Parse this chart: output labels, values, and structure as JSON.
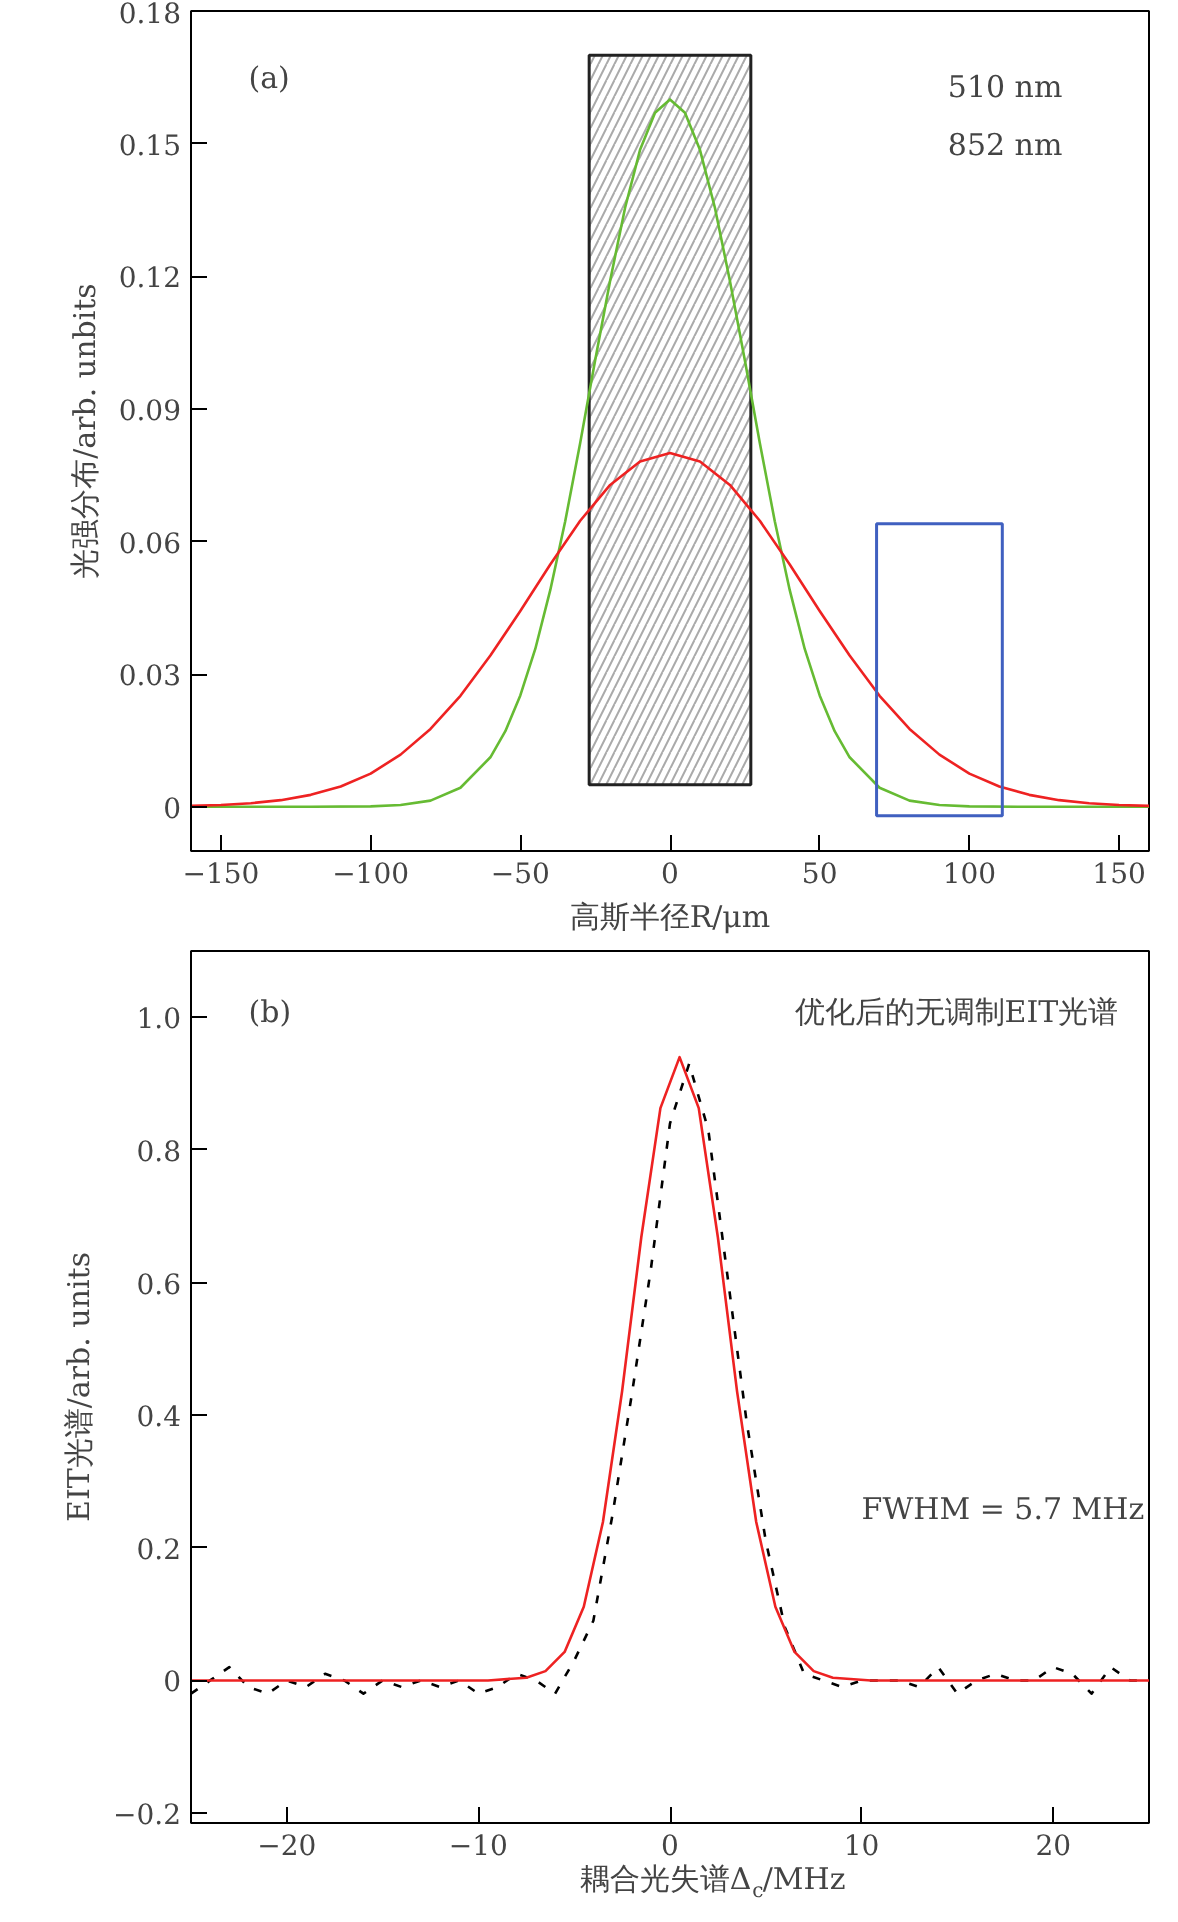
{
  "chart_data": [
    {
      "type": "line",
      "xlabel": "高斯半径R/μm",
      "ylabel": "光强分布/arb. unbits",
      "xlim": [
        -160,
        160
      ],
      "ylim": [
        -0.01,
        0.18
      ],
      "xticks": [
        {
          "value": -150,
          "label": "−150"
        },
        {
          "value": -100,
          "label": "−100"
        },
        {
          "value": -50,
          "label": "−50"
        },
        0,
        50,
        100,
        150
      ],
      "yticks": [
        0,
        0.03,
        0.06,
        0.09,
        0.12,
        0.15,
        0.18
      ],
      "grid": false,
      "line_style": "solid",
      "marker": "none",
      "annotations": [
        "(a)",
        "510 nm",
        "852 nm"
      ],
      "series": [
        {
          "color": "#66bb33",
          "x": [
            -160,
            -120,
            -100,
            -90,
            -80,
            -70,
            -60,
            -55,
            -50,
            -45,
            -40,
            -35,
            -30,
            -25,
            -20,
            -15,
            -10,
            -5,
            0,
            5,
            10,
            15,
            20,
            25,
            30,
            35,
            40,
            45,
            50,
            55,
            60,
            70,
            80,
            90,
            100,
            120,
            160
          ],
          "values": [
            0,
            0,
            0.0001,
            0.0004,
            0.0014,
            0.0043,
            0.0112,
            0.0171,
            0.0252,
            0.0357,
            0.049,
            0.0646,
            0.0823,
            0.101,
            0.119,
            0.1355,
            0.1486,
            0.157,
            0.16,
            0.157,
            0.1486,
            0.1355,
            0.119,
            0.101,
            0.0823,
            0.0646,
            0.049,
            0.0357,
            0.0252,
            0.0171,
            0.0112,
            0.0043,
            0.0014,
            0.0004,
            0.0001,
            0,
            0
          ]
        },
        {
          "color": "#ee2222",
          "x": [
            -160,
            -150,
            -140,
            -130,
            -120,
            -110,
            -100,
            -90,
            -80,
            -70,
            -60,
            -50,
            -40,
            -30,
            -20,
            -10,
            0,
            10,
            20,
            30,
            40,
            50,
            60,
            70,
            80,
            90,
            100,
            110,
            120,
            130,
            140,
            150,
            160
          ],
          "values": [
            0.0002,
            0.0004,
            0.0008,
            0.0015,
            0.0027,
            0.0046,
            0.0075,
            0.0118,
            0.0176,
            0.0251,
            0.0342,
            0.0443,
            0.0548,
            0.0647,
            0.0728,
            0.0781,
            0.08,
            0.0781,
            0.0728,
            0.0647,
            0.0548,
            0.0443,
            0.0342,
            0.0251,
            0.0176,
            0.0118,
            0.0075,
            0.0046,
            0.0027,
            0.0015,
            0.0008,
            0.0004,
            0.0002
          ]
        },
        {
          "type": "bar",
          "color": "#222222",
          "x": [
            0
          ],
          "base": [
            0.005
          ],
          "values": [
            0.165
          ]
        },
        {
          "type": "bar",
          "color": "#4060c0",
          "x": [
            90
          ],
          "base": [
            -0.002
          ],
          "values": [
            0.066
          ]
        }
      ]
    },
    {
      "type": "line",
      "xlabel": "耦合光失谱Δ$_{c}$/MHz",
      "ylabel": "EIT光谱/arb. units",
      "xlim": [
        -25,
        25
      ],
      "ylim": [
        -0.215,
        1.1
      ],
      "xticks": [
        {
          "value": -20,
          "label": "−20"
        },
        {
          "value": -10,
          "label": "−10"
        },
        0,
        10,
        20
      ],
      "yticks": [
        {
          "value": -0.2,
          "label": "−0.2"
        },
        0,
        0.2,
        0.4,
        0.6,
        0.8,
        {
          "value": 1.0,
          "label": "1.0"
        }
      ],
      "grid": false,
      "marker": "none",
      "annotations": [
        "(b)",
        "优化后的无调制EIT光谱",
        "FWHM = 5.7 MHz"
      ],
      "series": [
        {
          "line_style": "dashed",
          "color": "#000000",
          "x": [
            -25,
            -24,
            -23,
            -22,
            -21,
            -20,
            -19,
            -18,
            -17,
            -16,
            -15,
            -14,
            -13,
            -12,
            -11,
            -10,
            -9,
            -8,
            -7,
            -6,
            -5,
            -4,
            -3,
            -2,
            -1,
            0,
            1,
            2,
            3,
            4,
            5,
            6,
            7,
            8,
            9,
            10,
            11,
            12,
            13,
            14,
            15,
            16,
            17,
            18,
            19,
            20,
            21,
            22,
            23,
            24,
            25
          ],
          "values": [
            -0.02,
            0,
            0.02,
            -0.01,
            -0.02,
            0,
            -0.01,
            0.01,
            0,
            -0.02,
            0,
            -0.01,
            0,
            -0.01,
            0,
            -0.02,
            -0.01,
            0.01,
            0,
            -0.02,
            0.03,
            0.09,
            0.25,
            0.43,
            0.62,
            0.84,
            0.93,
            0.83,
            0.61,
            0.39,
            0.21,
            0.08,
            0.01,
            0,
            -0.01,
            0,
            0,
            0,
            -0.01,
            0.02,
            -0.02,
            0,
            0.01,
            0,
            0,
            0.02,
            0.01,
            -0.02,
            0.02,
            0,
            0
          ]
        },
        {
          "line_style": "solid",
          "color": "#ee2222",
          "x": [
            -25,
            -9.5,
            -7.5,
            -6.5,
            -5.5,
            -4.5,
            -3.5,
            -2.5,
            -1.5,
            -0.5,
            0.5,
            1.5,
            2.5,
            3.5,
            4.5,
            5.5,
            6.5,
            7.5,
            8.5,
            10.5,
            25
          ],
          "values": [
            0,
            0,
            0.004,
            0.014,
            0.043,
            0.111,
            0.239,
            0.436,
            0.668,
            0.863,
            0.94,
            0.863,
            0.668,
            0.436,
            0.239,
            0.111,
            0.043,
            0.014,
            0.004,
            0,
            0
          ]
        }
      ]
    }
  ]
}
